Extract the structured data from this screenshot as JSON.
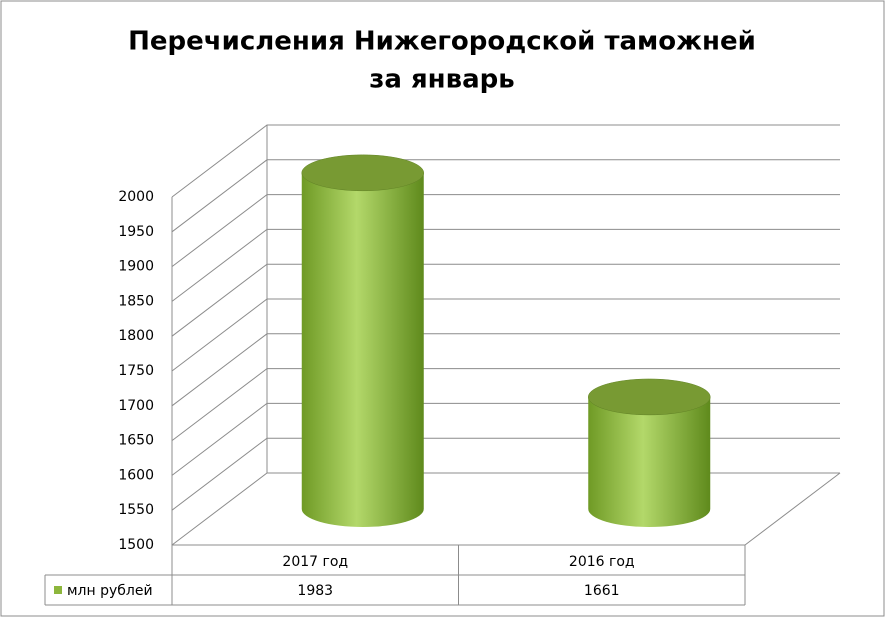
{
  "chart_data": {
    "type": "bar3d-cylinder",
    "title": [
      "Перечисления Нижегородской таможней",
      "за январь"
    ],
    "categories": [
      "2017 год",
      "2016 год"
    ],
    "series": [
      {
        "name": "млн рублей",
        "color": "#8db63c",
        "values": [
          1983,
          1661
        ]
      }
    ],
    "ylim": [
      1500,
      2000
    ],
    "yticks": [
      1500,
      1550,
      1600,
      1650,
      1700,
      1750,
      1800,
      1850,
      1900,
      1950,
      2000
    ],
    "grid": true,
    "data_table": true
  }
}
